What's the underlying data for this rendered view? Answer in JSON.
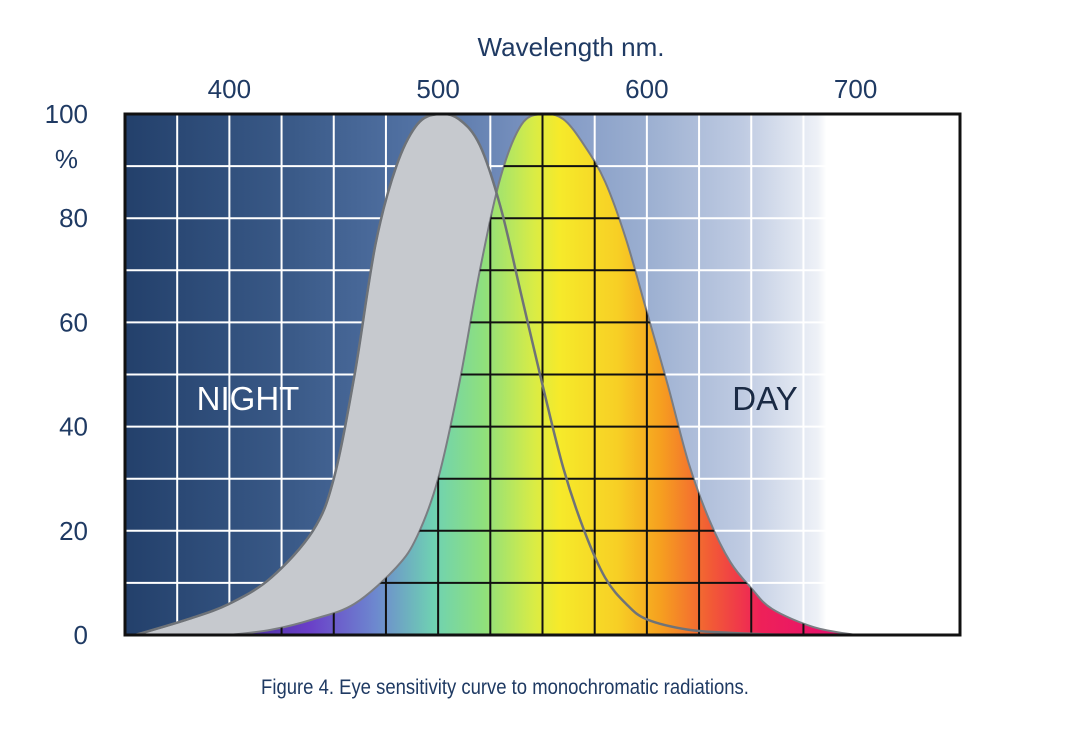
{
  "chart_data": {
    "type": "area",
    "title": "",
    "xlabel": "Wavelength nm.",
    "ylabel": "%",
    "xlim": [
      350,
      750
    ],
    "ylim": [
      0,
      100
    ],
    "x_ticks": [
      400,
      500,
      600,
      700
    ],
    "y_ticks": [
      0,
      20,
      40,
      60,
      80,
      100
    ],
    "y_unit_label": "%",
    "grid": true,
    "series": [
      {
        "name": "NIGHT",
        "color": "#c6c9ce",
        "x": [
          355,
          380,
          400,
          420,
          440,
          450,
          460,
          470,
          480,
          490,
          500,
          510,
          520,
          530,
          540,
          550,
          560,
          570,
          580,
          590,
          600,
          620,
          640,
          660,
          680
        ],
        "y": [
          0,
          3,
          6,
          11,
          20,
          30,
          50,
          75,
          90,
          98,
          100,
          99,
          94,
          82,
          65,
          48,
          32,
          20,
          11,
          6,
          3,
          1,
          0.4,
          0.1,
          0
        ]
      },
      {
        "name": "DAY",
        "color": "#f5e52a",
        "x": [
          400,
          420,
          440,
          460,
          480,
          490,
          500,
          510,
          520,
          530,
          540,
          550,
          560,
          570,
          580,
          590,
          600,
          610,
          620,
          630,
          640,
          650,
          660,
          680,
          700
        ],
        "y": [
          0,
          1,
          3,
          6,
          13,
          19,
          30,
          48,
          70,
          88,
          98,
          100,
          99,
          94,
          87,
          76,
          62,
          48,
          33,
          22,
          14,
          9,
          5,
          1.5,
          0
        ]
      }
    ],
    "annotations": [
      "NIGHT",
      "DAY"
    ]
  },
  "caption": {
    "figure_label": "Figure 4.",
    "text": "Eye sensitivity curve to monochromatic radiations."
  }
}
